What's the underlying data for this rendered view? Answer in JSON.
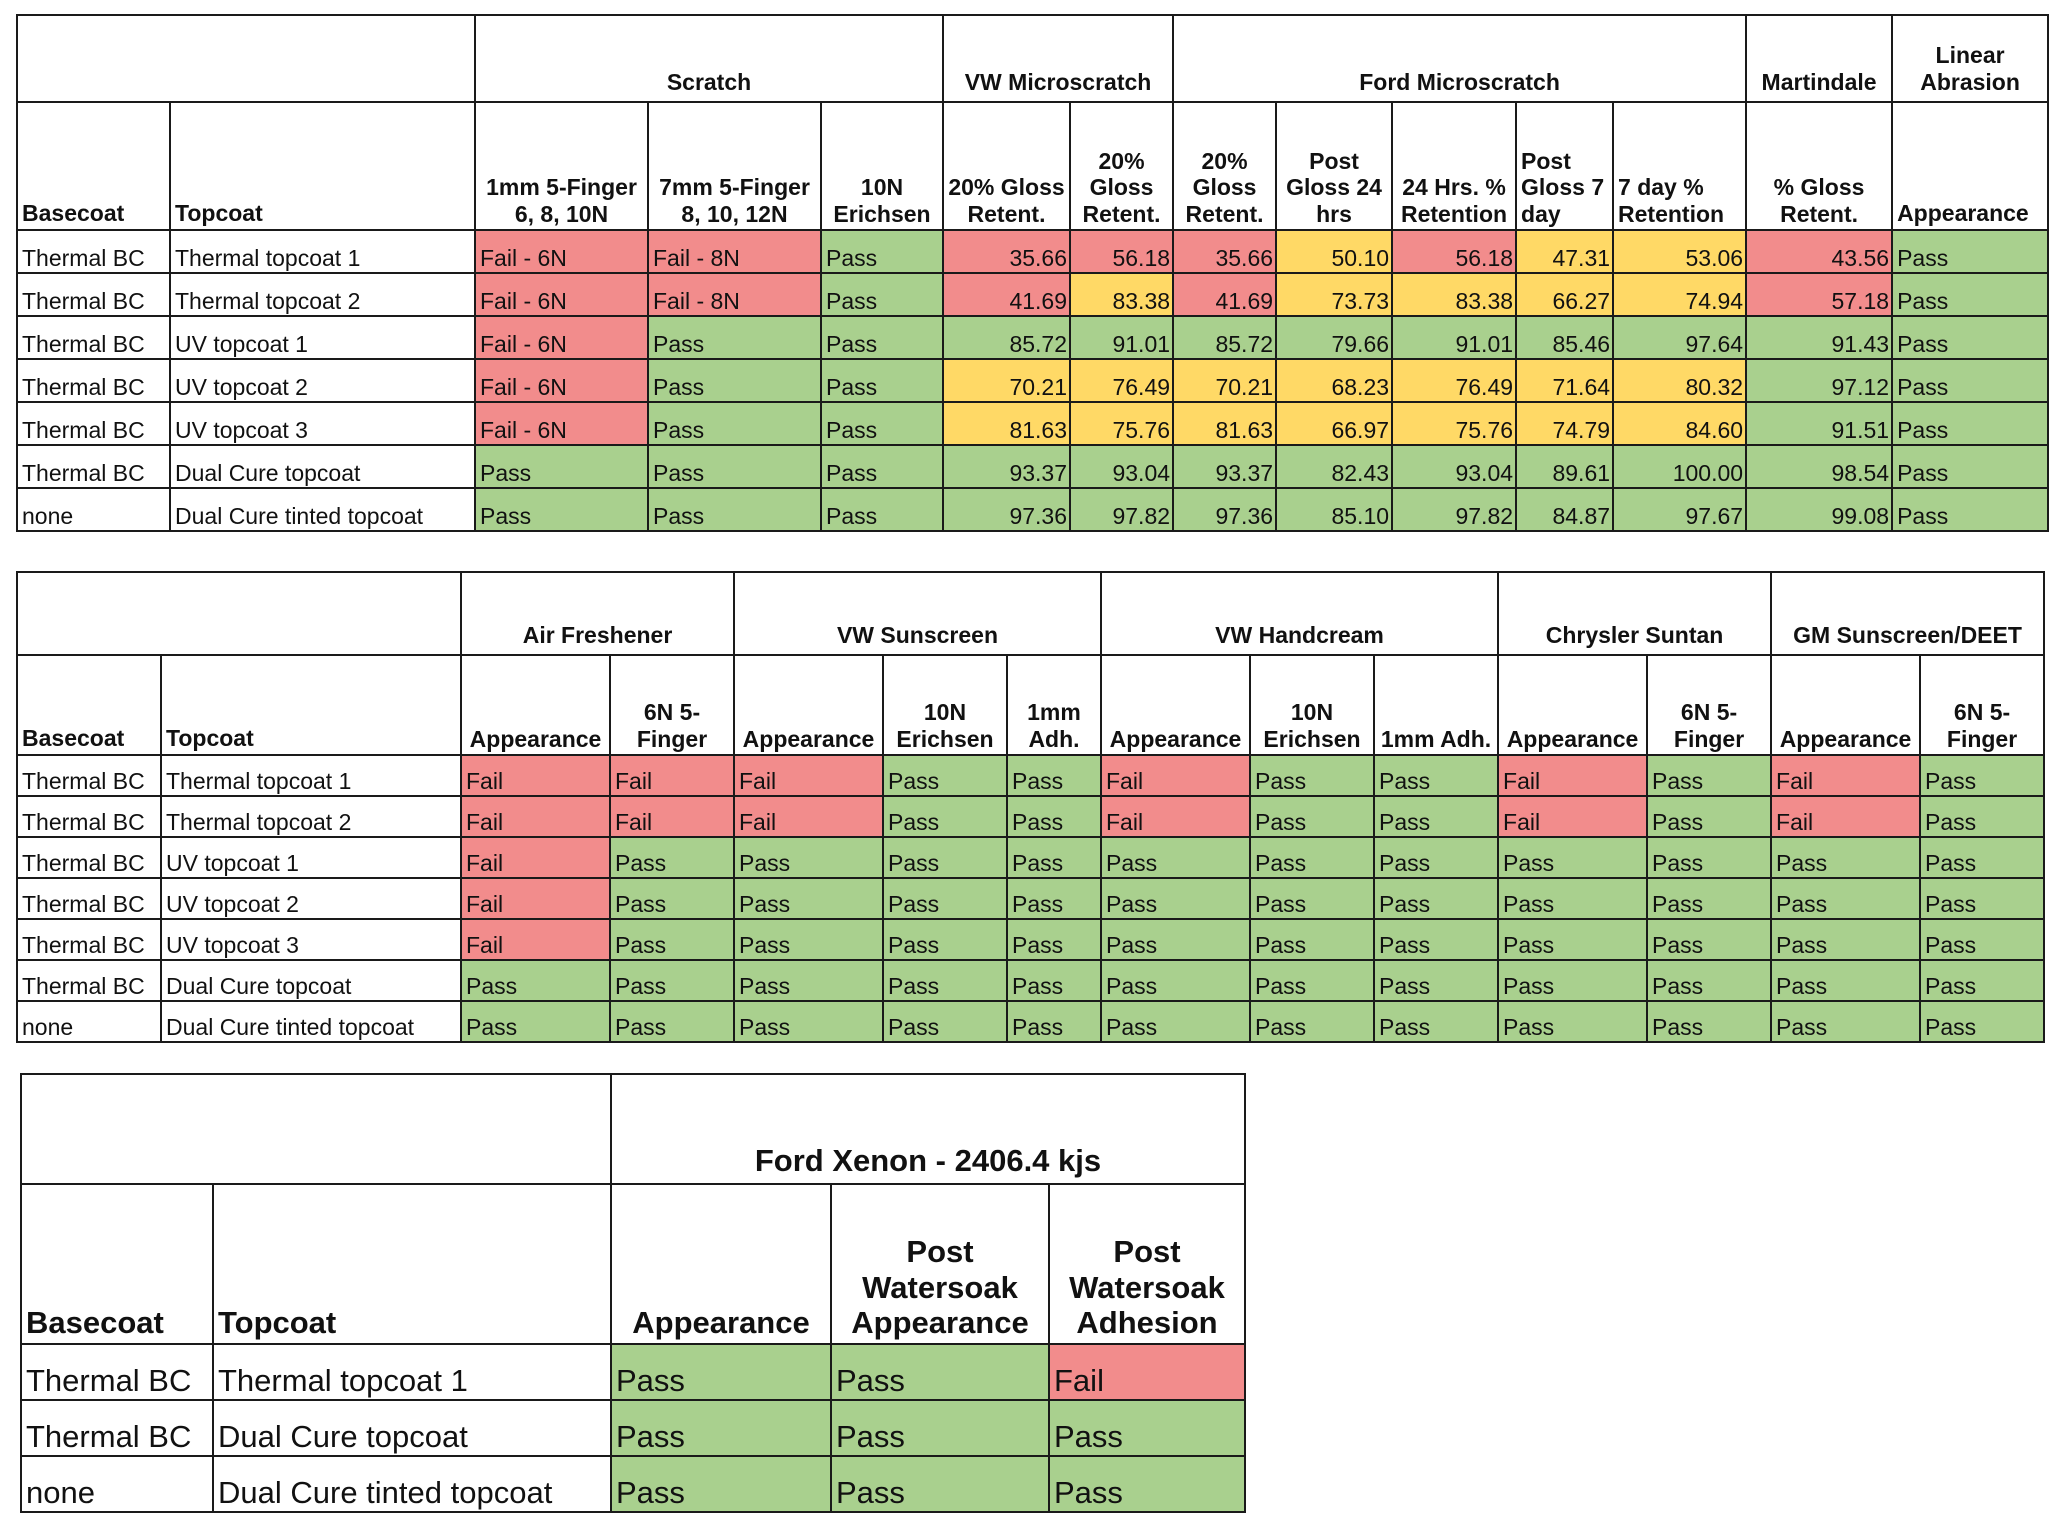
{
  "table1": {
    "groups": [
      "Scratch",
      "VW Microscratch",
      "Ford Microscratch",
      "Martindale",
      "Linear Abrasion"
    ],
    "headers": [
      "Basecoat",
      "Topcoat",
      "1mm 5-Finger 6, 8, 10N",
      "7mm 5-Finger 8, 10, 12N",
      "10N Erichsen",
      "20% Gloss Retent.",
      "20% Gloss Retent.",
      "20% Gloss Retent.",
      "Post Gloss 24 hrs",
      "24 Hrs. % Retention",
      "Post Gloss 7 day",
      "7 day % Retention",
      "% Gloss Retent.",
      "Appearance"
    ],
    "rows": [
      {
        "cells": [
          "Thermal BC",
          "Thermal topcoat 1",
          "Fail - 6N",
          "Fail - 8N",
          "Pass",
          "35.66",
          "56.18",
          "35.66",
          "50.10",
          "56.18",
          "47.31",
          "53.06",
          "43.56",
          "Pass"
        ],
        "status": [
          "",
          "",
          "fail",
          "fail",
          "pass",
          "fail",
          "fail",
          "fail",
          "warn",
          "fail",
          "warn",
          "warn",
          "fail",
          "pass"
        ]
      },
      {
        "cells": [
          "Thermal BC",
          "Thermal topcoat 2",
          "Fail - 6N",
          "Fail - 8N",
          "Pass",
          "41.69",
          "83.38",
          "41.69",
          "73.73",
          "83.38",
          "66.27",
          "74.94",
          "57.18",
          "Pass"
        ],
        "status": [
          "",
          "",
          "fail",
          "fail",
          "pass",
          "fail",
          "warn",
          "fail",
          "warn",
          "warn",
          "warn",
          "warn",
          "fail",
          "pass"
        ]
      },
      {
        "cells": [
          "Thermal BC",
          "UV topcoat 1",
          "Fail - 6N",
          "Pass",
          "Pass",
          "85.72",
          "91.01",
          "85.72",
          "79.66",
          "91.01",
          "85.46",
          "97.64",
          "91.43",
          "Pass"
        ],
        "status": [
          "",
          "",
          "fail",
          "pass",
          "pass",
          "pass",
          "pass",
          "pass",
          "pass",
          "pass",
          "pass",
          "pass",
          "pass",
          "pass"
        ]
      },
      {
        "cells": [
          "Thermal BC",
          "UV topcoat 2",
          "Fail - 6N",
          "Pass",
          "Pass",
          "70.21",
          "76.49",
          "70.21",
          "68.23",
          "76.49",
          "71.64",
          "80.32",
          "97.12",
          "Pass"
        ],
        "status": [
          "",
          "",
          "fail",
          "pass",
          "pass",
          "warn",
          "warn",
          "warn",
          "warn",
          "warn",
          "warn",
          "warn",
          "pass",
          "pass"
        ]
      },
      {
        "cells": [
          "Thermal BC",
          "UV topcoat 3",
          "Fail - 6N",
          "Pass",
          "Pass",
          "81.63",
          "75.76",
          "81.63",
          "66.97",
          "75.76",
          "74.79",
          "84.60",
          "91.51",
          "Pass"
        ],
        "status": [
          "",
          "",
          "fail",
          "pass",
          "pass",
          "warn",
          "warn",
          "warn",
          "warn",
          "warn",
          "warn",
          "warn",
          "pass",
          "pass"
        ]
      },
      {
        "cells": [
          "Thermal BC",
          "Dual Cure topcoat",
          "Pass",
          "Pass",
          "Pass",
          "93.37",
          "93.04",
          "93.37",
          "82.43",
          "93.04",
          "89.61",
          "100.00",
          "98.54",
          "Pass"
        ],
        "status": [
          "",
          "",
          "pass",
          "pass",
          "pass",
          "pass",
          "pass",
          "pass",
          "pass",
          "pass",
          "pass",
          "pass",
          "pass",
          "pass"
        ]
      },
      {
        "cells": [
          "none",
          "Dual Cure tinted topcoat",
          "Pass",
          "Pass",
          "Pass",
          "97.36",
          "97.82",
          "97.36",
          "85.10",
          "97.82",
          "84.87",
          "97.67",
          "99.08",
          "Pass"
        ],
        "status": [
          "",
          "",
          "pass",
          "pass",
          "pass",
          "pass",
          "pass",
          "pass",
          "pass",
          "pass",
          "pass",
          "pass",
          "pass",
          "pass"
        ]
      }
    ]
  },
  "table2": {
    "groups": [
      "Air Freshener",
      "VW Sunscreen",
      "VW Handcream",
      "Chrysler Suntan",
      "GM Sunscreen/DEET"
    ],
    "headers": [
      "Basecoat",
      "Topcoat",
      "Appearance",
      "6N 5-Finger",
      "Appearance",
      "10N Erichsen",
      "1mm Adh.",
      "Appearance",
      "10N Erichsen",
      "1mm Adh.",
      "Appearance",
      "6N 5-Finger",
      "Appearance",
      "6N 5-Finger"
    ],
    "rows": [
      {
        "cells": [
          "Thermal BC",
          "Thermal topcoat 1",
          "Fail",
          "Fail",
          "Fail",
          "Pass",
          "Pass",
          "Fail",
          "Pass",
          "Pass",
          "Fail",
          "Pass",
          "Fail",
          "Pass"
        ],
        "status": [
          "",
          "",
          "fail",
          "fail",
          "fail",
          "pass",
          "pass",
          "fail",
          "pass",
          "pass",
          "fail",
          "pass",
          "fail",
          "pass"
        ]
      },
      {
        "cells": [
          "Thermal BC",
          "Thermal topcoat 2",
          "Fail",
          "Fail",
          "Fail",
          "Pass",
          "Pass",
          "Fail",
          "Pass",
          "Pass",
          "Fail",
          "Pass",
          "Fail",
          "Pass"
        ],
        "status": [
          "",
          "",
          "fail",
          "fail",
          "fail",
          "pass",
          "pass",
          "fail",
          "pass",
          "pass",
          "fail",
          "pass",
          "fail",
          "pass"
        ]
      },
      {
        "cells": [
          "Thermal BC",
          "UV topcoat 1",
          "Fail",
          "Pass",
          "Pass",
          "Pass",
          "Pass",
          "Pass",
          "Pass",
          "Pass",
          "Pass",
          "Pass",
          "Pass",
          "Pass"
        ],
        "status": [
          "",
          "",
          "fail",
          "pass",
          "pass",
          "pass",
          "pass",
          "pass",
          "pass",
          "pass",
          "pass",
          "pass",
          "pass",
          "pass"
        ]
      },
      {
        "cells": [
          "Thermal BC",
          "UV topcoat 2",
          "Fail",
          "Pass",
          "Pass",
          "Pass",
          "Pass",
          "Pass",
          "Pass",
          "Pass",
          "Pass",
          "Pass",
          "Pass",
          "Pass"
        ],
        "status": [
          "",
          "",
          "fail",
          "pass",
          "pass",
          "pass",
          "pass",
          "pass",
          "pass",
          "pass",
          "pass",
          "pass",
          "pass",
          "pass"
        ]
      },
      {
        "cells": [
          "Thermal BC",
          "UV topcoat 3",
          "Fail",
          "Pass",
          "Pass",
          "Pass",
          "Pass",
          "Pass",
          "Pass",
          "Pass",
          "Pass",
          "Pass",
          "Pass",
          "Pass"
        ],
        "status": [
          "",
          "",
          "fail",
          "pass",
          "pass",
          "pass",
          "pass",
          "pass",
          "pass",
          "pass",
          "pass",
          "pass",
          "pass",
          "pass"
        ]
      },
      {
        "cells": [
          "Thermal BC",
          "Dual Cure topcoat",
          "Pass",
          "Pass",
          "Pass",
          "Pass",
          "Pass",
          "Pass",
          "Pass",
          "Pass",
          "Pass",
          "Pass",
          "Pass",
          "Pass"
        ],
        "status": [
          "",
          "",
          "pass",
          "pass",
          "pass",
          "pass",
          "pass",
          "pass",
          "pass",
          "pass",
          "pass",
          "pass",
          "pass",
          "pass"
        ]
      },
      {
        "cells": [
          "none",
          "Dual Cure tinted topcoat",
          "Pass",
          "Pass",
          "Pass",
          "Pass",
          "Pass",
          "Pass",
          "Pass",
          "Pass",
          "Pass",
          "Pass",
          "Pass",
          "Pass"
        ],
        "status": [
          "",
          "",
          "pass",
          "pass",
          "pass",
          "pass",
          "pass",
          "pass",
          "pass",
          "pass",
          "pass",
          "pass",
          "pass",
          "pass"
        ]
      }
    ]
  },
  "table3": {
    "groups": [
      "Ford Xenon - 2406.4 kjs"
    ],
    "headers": [
      "Basecoat",
      "Topcoat",
      "Appearance",
      "Post Watersoak Appearance",
      "Post Watersoak Adhesion"
    ],
    "rows": [
      {
        "cells": [
          "Thermal BC",
          "Thermal topcoat 1",
          "Pass",
          "Pass",
          "Fail"
        ],
        "status": [
          "",
          "",
          "pass",
          "pass",
          "fail"
        ]
      },
      {
        "cells": [
          "Thermal BC",
          "Dual Cure topcoat",
          "Pass",
          "Pass",
          "Pass"
        ],
        "status": [
          "",
          "",
          "pass",
          "pass",
          "pass"
        ]
      },
      {
        "cells": [
          "none",
          "Dual Cure tinted topcoat",
          "Pass",
          "Pass",
          "Pass"
        ],
        "status": [
          "",
          "",
          "pass",
          "pass",
          "pass"
        ]
      }
    ]
  },
  "colors": {
    "pass": "#a9d08e",
    "fail": "#f28c8c",
    "warn": "#ffd966"
  }
}
